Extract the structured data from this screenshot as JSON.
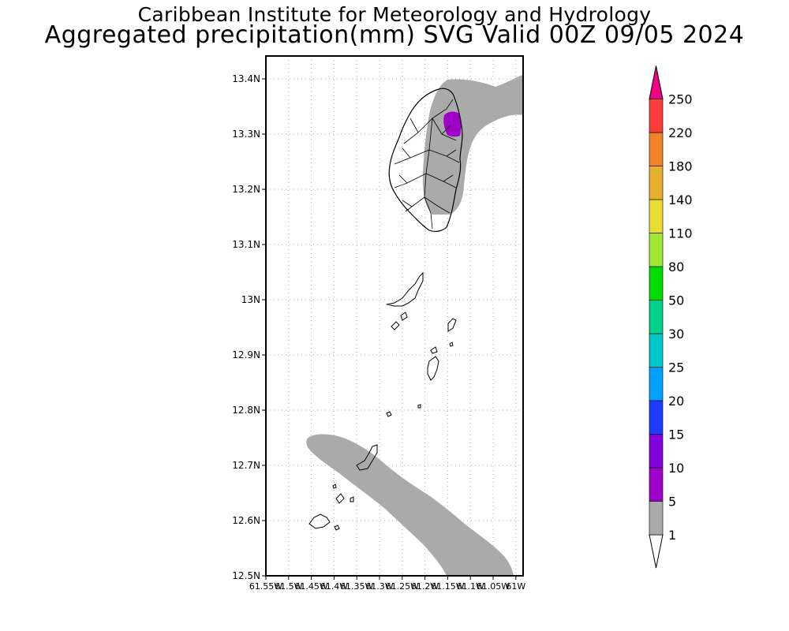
{
  "header": {
    "line1": "Caribbean Institute for Meteorology and Hydrology",
    "line2": "Aggregated precipitation(mm) SVG Valid 00Z 09/05 2024"
  },
  "map": {
    "lat_range": [
      12.5,
      13.45
    ],
    "lon_range": [
      -61.55,
      -61.0
    ],
    "lat_ticks": [
      {
        "value": 13.4,
        "label": "13.4N"
      },
      {
        "value": 13.3,
        "label": "13.3N"
      },
      {
        "value": 13.2,
        "label": "13.2N"
      },
      {
        "value": 13.1,
        "label": "13.1N"
      },
      {
        "value": 13.0,
        "label": "13N"
      },
      {
        "value": 12.9,
        "label": "12.9N"
      },
      {
        "value": 12.8,
        "label": "12.8N"
      },
      {
        "value": 12.7,
        "label": "12.7N"
      },
      {
        "value": 12.6,
        "label": "12.6N"
      },
      {
        "value": 12.5,
        "label": "12.5N"
      }
    ],
    "lon_ticks": [
      {
        "value": -61.55,
        "label": "61.55W"
      },
      {
        "value": -61.5,
        "label": "61.5W"
      },
      {
        "value": -61.45,
        "label": "61.45W"
      },
      {
        "value": -61.4,
        "label": "61.4W"
      },
      {
        "value": -61.35,
        "label": "61.35W"
      },
      {
        "value": -61.3,
        "label": "61.3W"
      },
      {
        "value": -61.25,
        "label": "61.25W"
      },
      {
        "value": -61.2,
        "label": "61.2W"
      },
      {
        "value": -61.15,
        "label": "61.15W"
      },
      {
        "value": -61.1,
        "label": "61.1W"
      },
      {
        "value": -61.05,
        "label": "61.05W"
      },
      {
        "value": -61.0,
        "label": "61W"
      }
    ],
    "colors": {
      "rain_1_5": "#aaaaaa",
      "rain_5_10": "#a000c8",
      "land_outline": "#000000"
    }
  },
  "colorbar": {
    "levels": [
      {
        "label": "1",
        "color": "#aaaaaa"
      },
      {
        "label": "5",
        "color": "#a000c8"
      },
      {
        "label": "10",
        "color": "#8200dc"
      },
      {
        "label": "15",
        "color": "#1e3cff"
      },
      {
        "label": "20",
        "color": "#00a0ff"
      },
      {
        "label": "25",
        "color": "#00c8c8"
      },
      {
        "label": "30",
        "color": "#00d28c"
      },
      {
        "label": "50",
        "color": "#00dc00"
      },
      {
        "label": "80",
        "color": "#a0e632"
      },
      {
        "label": "110",
        "color": "#e6dc32"
      },
      {
        "label": "140",
        "color": "#e6af2d"
      },
      {
        "label": "180",
        "color": "#f08228"
      },
      {
        "label": "220",
        "color": "#fa3c3c"
      },
      {
        "label": "250",
        "color": "#f00082"
      }
    ]
  }
}
